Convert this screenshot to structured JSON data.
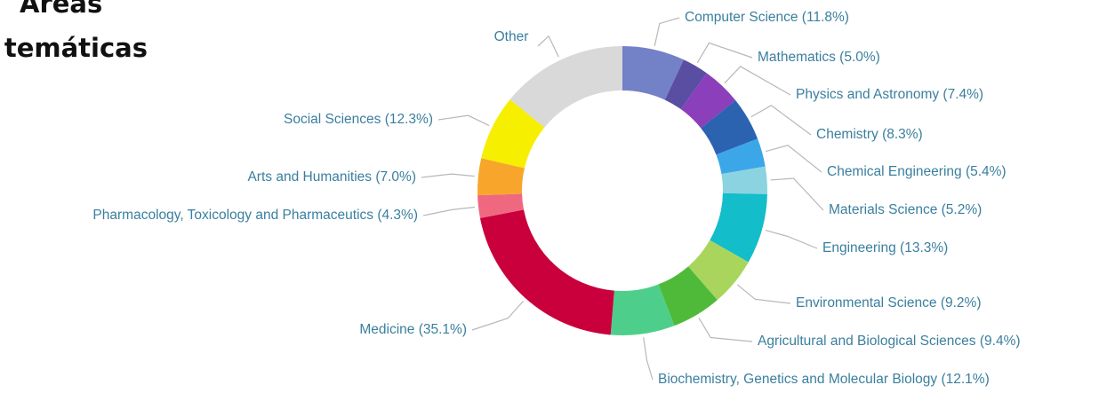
{
  "chart_data": {
    "type": "donut",
    "title": [
      "Áreas",
      "temáticas"
    ],
    "categories": [
      "Computer Science (11.8%)",
      "Mathematics (5.0%)",
      "Physics and Astronomy (7.4%)",
      "Chemistry (8.3%)",
      "Chemical Engineering (5.4%)",
      "Materials Science (5.2%)",
      "Engineering (13.3%)",
      "Environmental Science (9.2%)",
      "Agricultural and Biological Sciences (9.4%)",
      "Biochemistry, Genetics and Molecular Biology (12.1%)",
      "Medicine (35.1%)",
      "Pharmacology, Toxicology and Pharmaceutics (4.3%)",
      "Arts and Humanities (7.0%)",
      "Social Sciences (12.3%)",
      "Other"
    ],
    "values": [
      11.8,
      5.0,
      7.4,
      8.3,
      5.4,
      5.2,
      13.3,
      9.2,
      9.4,
      12.1,
      35.1,
      4.3,
      7.0,
      12.3,
      24
    ],
    "colors": [
      "#7381c6",
      "#5a4ea3",
      "#8b3fba",
      "#2b63b1",
      "#3ba7e9",
      "#8cd3e1",
      "#13bdc9",
      "#a9d55c",
      "#4fba3a",
      "#4dcf8b",
      "#c9003b",
      "#f0687f",
      "#f8a62b",
      "#f7ef00",
      "#d9d9d9"
    ]
  }
}
